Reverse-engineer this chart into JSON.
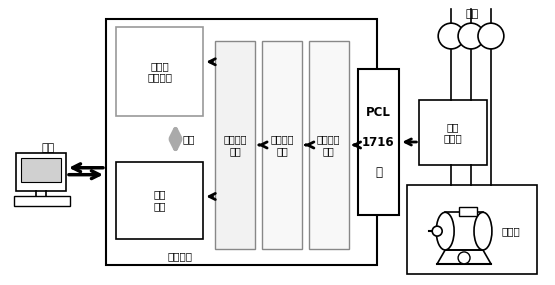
{
  "bg_color": "#ffffff",
  "title_elwang": "电网",
  "label_diannao": "电脑",
  "label_xuni": "虚拟平台",
  "label_bijiao": "比较",
  "label_zhuangcha": "转差率\n测量模块",
  "label_xunfeng": "寻峰\n模块",
  "label_pinpu": "频谱细化\n模块",
  "label_shuzi": "数字滤波\n模块",
  "label_shuju": "数据采集\n模块",
  "label_pcl": "PCL\n\n1716\n\n卡",
  "label_dianliu": "电流\n互感器",
  "label_diandongji": "电动机"
}
